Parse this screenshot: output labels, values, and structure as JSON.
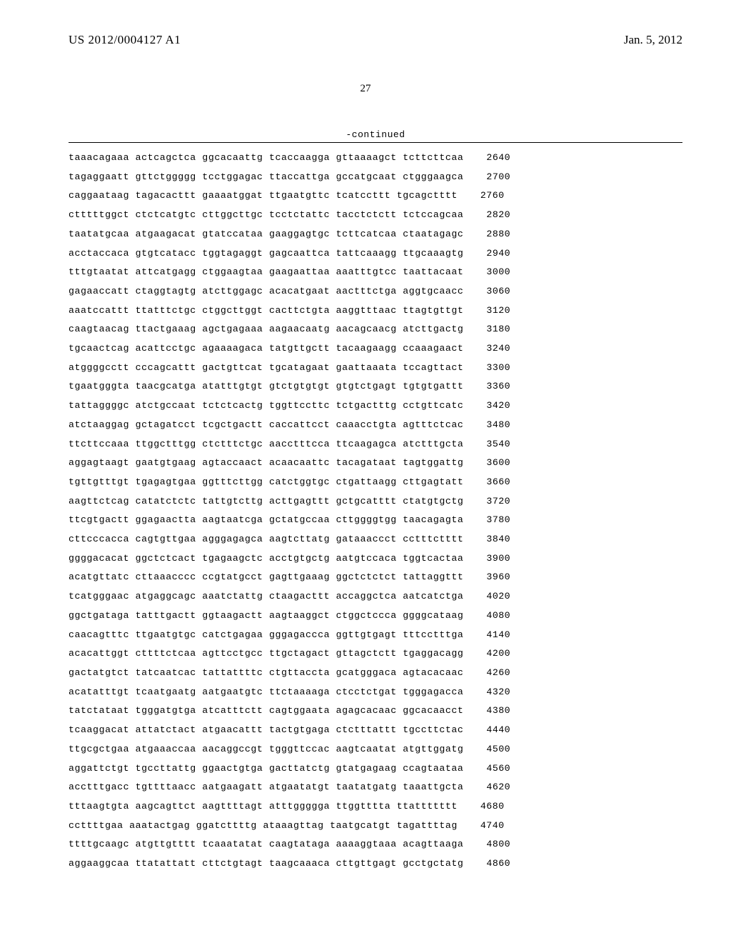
{
  "header": {
    "pub_number": "US 2012/0004127 A1",
    "pub_date": "Jan. 5, 2012"
  },
  "page_number": "27",
  "continued_label": "-continued",
  "sequence": {
    "font_family": "Courier New",
    "font_size_pt": 10,
    "rows": [
      {
        "blocks": [
          "taaacagaaa",
          "actcagctca",
          "ggcacaattg",
          "tcaccaagga",
          "gttaaaagct",
          "tcttcttcaa"
        ],
        "pos": "2640"
      },
      {
        "blocks": [
          "tagaggaatt",
          "gttctggggg",
          "tcctggagac",
          "ttaccattga",
          "gccatgcaat",
          "ctgggaagca"
        ],
        "pos": "2700"
      },
      {
        "blocks": [
          "caggaataag",
          "tagacacttt",
          "gaaaatggat",
          "ttgaatgttc",
          "tcatccttt",
          "tgcagctttt"
        ],
        "pos": "2760"
      },
      {
        "blocks": [
          "ctttttggct",
          "ctctcatgtc",
          "cttggcttgc",
          "tcctctattc",
          "tacctctctt",
          "tctccagcaa"
        ],
        "pos": "2820"
      },
      {
        "blocks": [
          "taatatgcaa",
          "atgaagacat",
          "gtatccataa",
          "gaaggagtgc",
          "tcttcatcaa",
          "ctaatagagc"
        ],
        "pos": "2880"
      },
      {
        "blocks": [
          "acctaccaca",
          "gtgtcatacc",
          "tggtagaggt",
          "gagcaattca",
          "tattcaaagg",
          "ttgcaaagtg"
        ],
        "pos": "2940"
      },
      {
        "blocks": [
          "tttgtaatat",
          "attcatgagg",
          "ctggaagtaa",
          "gaagaattaa",
          "aaatttgtcc",
          "taattacaat"
        ],
        "pos": "3000"
      },
      {
        "blocks": [
          "gagaaccatt",
          "ctaggtagtg",
          "atcttggagc",
          "acacatgaat",
          "aactttctga",
          "aggtgcaacc"
        ],
        "pos": "3060"
      },
      {
        "blocks": [
          "aaatccattt",
          "ttatttctgc",
          "ctggcttggt",
          "cacttctgta",
          "aaggtttaac",
          "ttagtgttgt"
        ],
        "pos": "3120"
      },
      {
        "blocks": [
          "caagtaacag",
          "ttactgaaag",
          "agctgagaaa",
          "aagaacaatg",
          "aacagcaacg",
          "atcttgactg"
        ],
        "pos": "3180"
      },
      {
        "blocks": [
          "tgcaactcag",
          "acattcctgc",
          "agaaaagaca",
          "tatgttgctt",
          "tacaagaagg",
          "ccaaagaact"
        ],
        "pos": "3240"
      },
      {
        "blocks": [
          "atggggcctt",
          "cccagcattt",
          "gactgttcat",
          "tgcatagaat",
          "gaattaaata",
          "tccagttact"
        ],
        "pos": "3300"
      },
      {
        "blocks": [
          "tgaatgggta",
          "taacgcatga",
          "atatttgtgt",
          "gtctgtgtgt",
          "gtgtctgagt",
          "tgtgtgattt"
        ],
        "pos": "3360"
      },
      {
        "blocks": [
          "tattaggggc",
          "atctgccaat",
          "tctctcactg",
          "tggttccttc",
          "tctgactttg",
          "cctgttcatc"
        ],
        "pos": "3420"
      },
      {
        "blocks": [
          "atctaaggag",
          "gctagatcct",
          "tcgctgactt",
          "caccattcct",
          "caaacctgta",
          "agtttctcac"
        ],
        "pos": "3480"
      },
      {
        "blocks": [
          "ttcttccaaa",
          "ttggctttgg",
          "ctctttctgc",
          "aacctttcca",
          "ttcaagagca",
          "atctttgcta"
        ],
        "pos": "3540"
      },
      {
        "blocks": [
          "aggagtaagt",
          "gaatgtgaag",
          "agtaccaact",
          "acaacaattc",
          "tacagataat",
          "tagtggattg"
        ],
        "pos": "3600"
      },
      {
        "blocks": [
          "tgttgtttgt",
          "tgagagtgaa",
          "ggtttcttgg",
          "catctggtgc",
          "ctgattaagg",
          "cttgagtatt"
        ],
        "pos": "3660"
      },
      {
        "blocks": [
          "aagttctcag",
          "catatctctc",
          "tattgtcttg",
          "acttgagttt",
          "gctgcatttt",
          "ctatgtgctg"
        ],
        "pos": "3720"
      },
      {
        "blocks": [
          "ttcgtgactt",
          "ggagaactta",
          "aagtaatcga",
          "gctatgccaa",
          "cttggggtgg",
          "taacagagta"
        ],
        "pos": "3780"
      },
      {
        "blocks": [
          "cttcccacca",
          "cagtgttgaa",
          "agggagagca",
          "aagtcttatg",
          "gataaaccct",
          "cctttctttt"
        ],
        "pos": "3840"
      },
      {
        "blocks": [
          "ggggacacat",
          "ggctctcact",
          "tgagaagctc",
          "acctgtgctg",
          "aatgtccaca",
          "tggtcactaa"
        ],
        "pos": "3900"
      },
      {
        "blocks": [
          "acatgttatc",
          "cttaaacccc",
          "ccgtatgcct",
          "gagttgaaag",
          "ggctctctct",
          "tattaggttt"
        ],
        "pos": "3960"
      },
      {
        "blocks": [
          "tcatgggaac",
          "atgaggcagc",
          "aaatctattg",
          "ctaagacttt",
          "accaggctca",
          "aatcatctga"
        ],
        "pos": "4020"
      },
      {
        "blocks": [
          "ggctgataga",
          "tatttgactt",
          "ggtaagactt",
          "aagtaaggct",
          "ctggctccca",
          "ggggcataag"
        ],
        "pos": "4080"
      },
      {
        "blocks": [
          "caacagtttc",
          "ttgaatgtgc",
          "catctgagaa",
          "gggagaccca",
          "ggttgtgagt",
          "tttcctttga"
        ],
        "pos": "4140"
      },
      {
        "blocks": [
          "acacattggt",
          "cttttctcaa",
          "agttcctgcc",
          "ttgctagact",
          "gttagctctt",
          "tgaggacagg"
        ],
        "pos": "4200"
      },
      {
        "blocks": [
          "gactatgtct",
          "tatcaatcac",
          "tattattttc",
          "ctgttaccta",
          "gcatgggaca",
          "agtacacaac"
        ],
        "pos": "4260"
      },
      {
        "blocks": [
          "acatatttgt",
          "tcaatgaatg",
          "aatgaatgtc",
          "ttctaaaaga",
          "ctcctctgat",
          "tgggagacca"
        ],
        "pos": "4320"
      },
      {
        "blocks": [
          "tatctataat",
          "tgggatgtga",
          "atcatttctt",
          "cagtggaata",
          "agagcacaac",
          "ggcacaacct"
        ],
        "pos": "4380"
      },
      {
        "blocks": [
          "tcaaggacat",
          "attatctact",
          "atgaacattt",
          "tactgtgaga",
          "ctctttattt",
          "tgccttctac"
        ],
        "pos": "4440"
      },
      {
        "blocks": [
          "ttgcgctgaa",
          "atgaaaccaa",
          "aacaggccgt",
          "tgggttccac",
          "aagtcaatat",
          "atgttggatg"
        ],
        "pos": "4500"
      },
      {
        "blocks": [
          "aggattctgt",
          "tgccttattg",
          "ggaactgtga",
          "gacttatctg",
          "gtatgagaag",
          "ccagtaataa"
        ],
        "pos": "4560"
      },
      {
        "blocks": [
          "acctttgacc",
          "tgttttaacc",
          "aatgaagatt",
          "atgaatatgt",
          "taatatgatg",
          "taaattgcta"
        ],
        "pos": "4620"
      },
      {
        "blocks": [
          "tttaagtgta",
          "aagcagttct",
          "aagttttagt",
          "atttggggga",
          "ttggtttta",
          "ttattttttt"
        ],
        "pos": "4680"
      },
      {
        "blocks": [
          "ccttttgaa",
          "aaatactgag",
          "ggatcttttg",
          "ataaagttag",
          "taatgcatgt",
          "tagattttag"
        ],
        "pos": "4740"
      },
      {
        "blocks": [
          "ttttgcaagc",
          "atgttgtttt",
          "tcaaatatat",
          "caagtataga",
          "aaaaggtaaa",
          "acagttaaga"
        ],
        "pos": "4800"
      },
      {
        "blocks": [
          "aggaaggcaa",
          "ttatattatt",
          "cttctgtagt",
          "taagcaaaca",
          "cttgttgagt",
          "gcctgctatg"
        ],
        "pos": "4860"
      }
    ]
  }
}
